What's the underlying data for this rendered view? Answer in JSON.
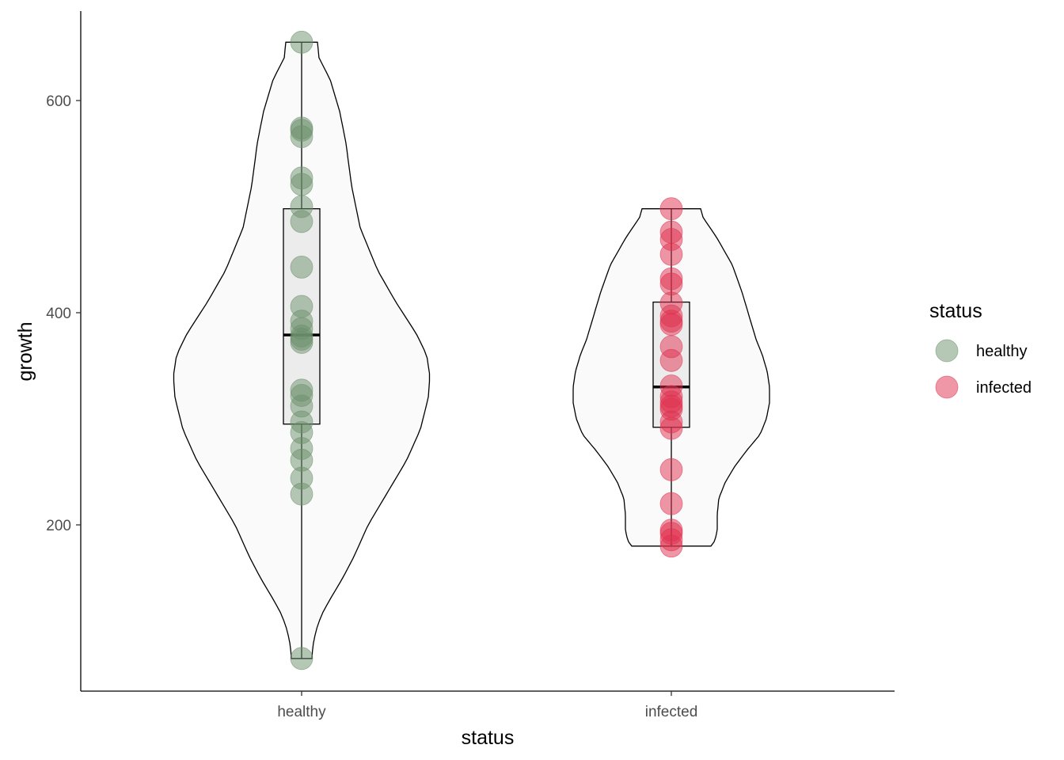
{
  "chart_data": {
    "type": "violin",
    "xlabel": "status",
    "ylabel": "growth",
    "categories": [
      "healthy",
      "infected"
    ],
    "ylim": [
      48,
      680
    ],
    "y_ticks": [
      200,
      400,
      600
    ],
    "grid": false,
    "legend": {
      "title": "status",
      "placement": "right",
      "entries": [
        {
          "label": "healthy",
          "color": "#6b8f6b"
        },
        {
          "label": "infected",
          "color": "#e0304e"
        }
      ]
    },
    "series": [
      {
        "category": "healthy",
        "color": "#6b8f6b",
        "points": [
          655,
          574,
          572,
          566,
          527,
          521,
          500,
          486,
          443,
          406,
          392,
          385,
          378,
          375,
          372,
          327,
          322,
          312,
          297,
          287,
          272,
          261,
          244,
          229,
          74
        ],
        "box": {
          "q1": 295,
          "median": 379,
          "q3": 498,
          "whisker_low": 74,
          "whisker_high": 655
        },
        "violin": {
          "min": 74,
          "max": 655,
          "profile": [
            [
              74,
              0.13
            ],
            [
              85,
              0.14
            ],
            [
              100,
              0.18
            ],
            [
              115,
              0.25
            ],
            [
              130,
              0.36
            ],
            [
              150,
              0.52
            ],
            [
              170,
              0.66
            ],
            [
              200,
              0.84
            ],
            [
              230,
              1.08
            ],
            [
              260,
              1.32
            ],
            [
              290,
              1.5
            ],
            [
              320,
              1.6
            ],
            [
              340,
              1.62
            ],
            [
              360,
              1.58
            ],
            [
              380,
              1.45
            ],
            [
              410,
              1.19
            ],
            [
              440,
              0.96
            ],
            [
              480,
              0.74
            ],
            [
              520,
              0.63
            ],
            [
              560,
              0.56
            ],
            [
              590,
              0.48
            ],
            [
              620,
              0.36
            ],
            [
              640,
              0.22
            ],
            [
              655,
              0.2
            ]
          ]
        }
      },
      {
        "category": "infected",
        "color": "#e0304e",
        "points": [
          498,
          476,
          469,
          455,
          432,
          427,
          409,
          397,
          392,
          389,
          368,
          355,
          331,
          321,
          316,
          312,
          309,
          297,
          291,
          252,
          220,
          195,
          192,
          186,
          180
        ],
        "box": {
          "q1": 292,
          "median": 330,
          "q3": 410,
          "whisker_low": 180,
          "whisker_high": 498
        },
        "violin": {
          "min": 180,
          "max": 498,
          "profile": [
            [
              180,
              0.5
            ],
            [
              185,
              0.55
            ],
            [
              195,
              0.58
            ],
            [
              210,
              0.58
            ],
            [
              225,
              0.6
            ],
            [
              240,
              0.68
            ],
            [
              255,
              0.8
            ],
            [
              270,
              0.95
            ],
            [
              285,
              1.12
            ],
            [
              300,
              1.2
            ],
            [
              315,
              1.24
            ],
            [
              330,
              1.24
            ],
            [
              345,
              1.21
            ],
            [
              360,
              1.15
            ],
            [
              375,
              1.07
            ],
            [
              395,
              0.99
            ],
            [
              420,
              0.89
            ],
            [
              445,
              0.77
            ],
            [
              470,
              0.58
            ],
            [
              490,
              0.4
            ],
            [
              498,
              0.37
            ]
          ]
        }
      }
    ]
  },
  "colors": {
    "violin_fill": "#fafafa",
    "box_fill": "#ececec",
    "outline": "#000000"
  }
}
